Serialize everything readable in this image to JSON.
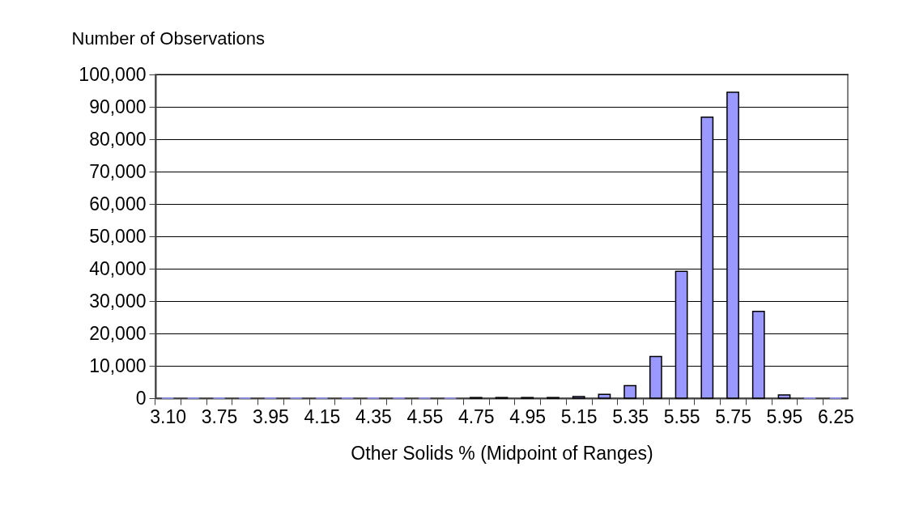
{
  "chart_data": {
    "type": "bar",
    "ylabel": "Number of Observations",
    "xlabel": "Other Solids % (Midpoint of Ranges)",
    "categories": [
      "3.10",
      null,
      "3.75",
      null,
      "3.95",
      null,
      "4.15",
      null,
      "4.35",
      null,
      "4.55",
      null,
      "4.75",
      null,
      "4.95",
      null,
      "5.15",
      null,
      "5.35",
      null,
      "5.55",
      null,
      "5.75",
      null,
      "5.95",
      null,
      "6.25"
    ],
    "values": [
      0,
      0,
      0,
      0,
      0,
      0,
      0,
      0,
      0,
      0,
      0,
      0,
      200,
      200,
      200,
      200,
      500,
      1200,
      3900,
      12900,
      39200,
      86800,
      94500,
      26800,
      1000,
      0,
      0
    ],
    "color": "#9999ff",
    "ylim": [
      0,
      100000
    ],
    "yticks": [
      0,
      {
        "value": 10000,
        "label": "10,000"
      },
      {
        "value": 20000,
        "label": "20,000"
      },
      {
        "value": 30000,
        "label": "30,000"
      },
      {
        "value": 40000,
        "label": "40,000"
      },
      {
        "value": 50000,
        "label": "50,000"
      },
      {
        "value": 60000,
        "label": "60,000"
      },
      {
        "value": 70000,
        "label": "70,000"
      },
      {
        "value": 80000,
        "label": "80,000"
      },
      {
        "value": 90000,
        "label": "90,000"
      },
      {
        "value": 100000,
        "label": "100,000"
      }
    ],
    "grid": "y"
  }
}
